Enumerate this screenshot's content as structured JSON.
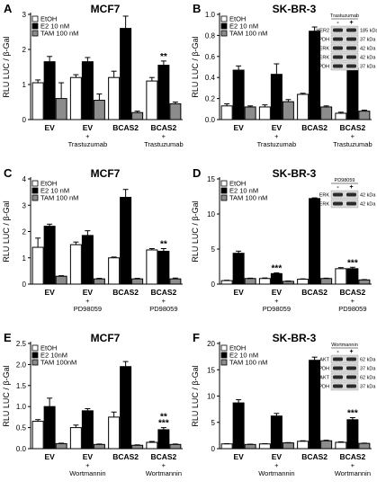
{
  "chart_data": [
    {
      "type": "bar",
      "panel_letter": "A",
      "title": "MCF7",
      "ylabel": "RLU  LUC / β-Gal",
      "ylim": [
        0,
        3
      ],
      "yticks": [
        "0",
        "1",
        "2",
        "3"
      ],
      "categories": [
        [
          "EV"
        ],
        [
          "EV",
          "+",
          "Trastuzumab"
        ],
        [
          "BCAS2"
        ],
        [
          "BCAS2",
          "+",
          "Trastuzumab"
        ]
      ],
      "series": [
        {
          "name": "EtOH",
          "values": [
            1.05,
            1.2,
            1.2,
            1.1
          ],
          "errors": [
            0.08,
            0.08,
            0.18,
            0.1
          ]
        },
        {
          "name": "E2   10 nM",
          "values": [
            1.65,
            1.65,
            2.6,
            1.55
          ],
          "errors": [
            0.15,
            0.12,
            0.35,
            0.12
          ]
        },
        {
          "name": "TAM 100 nM",
          "values": [
            0.6,
            0.55,
            0.2,
            0.45
          ],
          "errors": [
            0.45,
            0.18,
            0.04,
            0.05
          ]
        }
      ],
      "annotations": [
        {
          "category": 3,
          "series": 1,
          "text": "**"
        }
      ]
    },
    {
      "type": "bar",
      "panel_letter": "B",
      "title": "SK-BR-3",
      "ylabel": "RLU  LUC / β-Gal",
      "ylim": [
        0,
        1.0
      ],
      "yticks": [
        "0.0",
        "0.2",
        "0.4",
        "0.6",
        "0.8",
        "1.0"
      ],
      "categories": [
        [
          "EV"
        ],
        [
          "EV",
          "+",
          "Trastuzumab"
        ],
        [
          "BCAS2"
        ],
        [
          "BCAS2",
          "+",
          "Trastuzumab"
        ]
      ],
      "series": [
        {
          "name": "EtOH",
          "values": [
            0.13,
            0.12,
            0.24,
            0.06
          ],
          "errors": [
            0.02,
            0.02,
            0.01,
            0.01
          ]
        },
        {
          "name": "E2   10 nM",
          "values": [
            0.47,
            0.43,
            0.84,
            0.49
          ],
          "errors": [
            0.04,
            0.1,
            0.04,
            0.04
          ]
        },
        {
          "name": "TAM 100 nM",
          "values": [
            0.12,
            0.17,
            0.12,
            0.08
          ],
          "errors": [
            0.01,
            0.02,
            0.01,
            0.01
          ]
        }
      ],
      "annotations": [
        {
          "category": 3,
          "series": 1,
          "text": "***"
        }
      ],
      "blot": {
        "header": "Trastuzumab",
        "lanes": [
          "-",
          "+"
        ],
        "rows": [
          {
            "protein": "HER2",
            "size": "185 kDa"
          },
          {
            "protein": "GAPDH",
            "size": "37 kDa"
          },
          {
            "protein": "ERK",
            "size": "42 kDa"
          },
          {
            "protein": "pERK",
            "size": "42 kDa"
          },
          {
            "protein": "GAPDH",
            "size": "37 kDa"
          }
        ]
      }
    },
    {
      "type": "bar",
      "panel_letter": "C",
      "title": "MCF7",
      "ylabel": "RLU  LUC / β-Gal",
      "ylim": [
        0,
        4
      ],
      "yticks": [
        "0",
        "1",
        "2",
        "3",
        "4"
      ],
      "categories": [
        [
          "EV"
        ],
        [
          "EV",
          "+",
          "PD98059"
        ],
        [
          "BCAS2"
        ],
        [
          "BCAS2",
          "+",
          "PD98059"
        ]
      ],
      "series": [
        {
          "name": "EtOH",
          "values": [
            1.4,
            1.5,
            1.0,
            1.3
          ],
          "errors": [
            0.35,
            0.1,
            0.03,
            0.05
          ]
        },
        {
          "name": "E2   10 nM",
          "values": [
            2.2,
            1.85,
            3.3,
            1.25
          ],
          "errors": [
            0.08,
            0.18,
            0.3,
            0.1
          ]
        },
        {
          "name": "TAM 100 nM",
          "values": [
            0.3,
            0.2,
            0.2,
            0.2
          ],
          "errors": [
            0.02,
            0.02,
            0.02,
            0.03
          ]
        }
      ],
      "annotations": [
        {
          "category": 3,
          "series": 1,
          "text": "**"
        }
      ]
    },
    {
      "type": "bar",
      "panel_letter": "D",
      "title": "SK-BR-3",
      "ylabel": "RLU  LUC / β-Gal",
      "ylim": [
        0,
        15
      ],
      "yticks": [
        "0",
        "5",
        "10",
        "15"
      ],
      "categories": [
        [
          "EV"
        ],
        [
          "EV",
          "+",
          "PD98059"
        ],
        [
          "BCAS2"
        ],
        [
          "BCAS2",
          "+",
          "PD98059"
        ]
      ],
      "series": [
        {
          "name": "EtOH",
          "values": [
            0.5,
            0.8,
            0.7,
            2.2
          ],
          "errors": [
            0.05,
            0.08,
            0.05,
            0.15
          ]
        },
        {
          "name": "E2   10 nM",
          "values": [
            4.4,
            1.5,
            12.2,
            2.2
          ],
          "errors": [
            0.3,
            0.1,
            0.1,
            0.2
          ]
        },
        {
          "name": "TAM 100 nM",
          "values": [
            0.8,
            0.4,
            0.8,
            0.6
          ],
          "errors": [
            0.05,
            0.05,
            0.05,
            0.05
          ]
        }
      ],
      "annotations": [
        {
          "category": 1,
          "series": 1,
          "text": "***"
        },
        {
          "category": 3,
          "series": 1,
          "text": "***"
        }
      ],
      "blot": {
        "header": "PD98059",
        "lanes": [
          "-",
          "+"
        ],
        "rows": [
          {
            "protein": "ERK",
            "size": "42 kDa"
          },
          {
            "protein": "pERK",
            "size": "42 kDa"
          }
        ]
      }
    },
    {
      "type": "bar",
      "panel_letter": "E",
      "title": "MCF7",
      "ylabel": "RLU  LUC / β-Gal",
      "ylim": [
        0,
        2.5
      ],
      "yticks": [
        "0.0",
        "0.5",
        "1.0",
        "1.5",
        "2.0",
        "2.5"
      ],
      "categories": [
        [
          "EV"
        ],
        [
          "EV",
          "+",
          "Wortmannin"
        ],
        [
          "BCAS2"
        ],
        [
          "BCAS2",
          "+",
          "Wortmannin"
        ]
      ],
      "series": [
        {
          "name": "EtOH",
          "values": [
            0.65,
            0.5,
            0.75,
            0.15
          ],
          "errors": [
            0.04,
            0.06,
            0.12,
            0.02
          ]
        },
        {
          "name": "E2 10nM",
          "values": [
            1.0,
            0.9,
            1.95,
            0.45
          ],
          "errors": [
            0.2,
            0.05,
            0.12,
            0.05
          ]
        },
        {
          "name": "TAM 100nM",
          "values": [
            0.12,
            0.1,
            0.08,
            0.1
          ],
          "errors": [
            0.01,
            0.01,
            0.01,
            0.01
          ]
        }
      ],
      "annotations": [
        {
          "category": 3,
          "series": 1,
          "text": "**"
        },
        {
          "category": 3,
          "series": 1,
          "text": "***"
        }
      ]
    },
    {
      "type": "bar",
      "panel_letter": "F",
      "title": "SK-BR-3",
      "ylabel": "RLU  LUC / β-Gal",
      "ylim": [
        0,
        20
      ],
      "yticks": [
        "0",
        "5",
        "10",
        "15",
        "20"
      ],
      "categories": [
        [
          "EV"
        ],
        [
          "EV",
          "+",
          "Wortmannin"
        ],
        [
          "BCAS2"
        ],
        [
          "BCAS2",
          "+",
          "Wortmannin"
        ]
      ],
      "series": [
        {
          "name": "EtOH",
          "values": [
            0.9,
            0.9,
            1.4,
            1.2
          ],
          "errors": [
            0.05,
            0.05,
            0.1,
            0.1
          ]
        },
        {
          "name": "E2   10 nM",
          "values": [
            8.7,
            6.2,
            16.8,
            5.5
          ],
          "errors": [
            0.6,
            0.5,
            0.6,
            0.4
          ]
        },
        {
          "name": "TAM 100 nM",
          "values": [
            0.8,
            1.1,
            1.5,
            1.0
          ],
          "errors": [
            0.05,
            0.05,
            0.1,
            0.05
          ]
        }
      ],
      "annotations": [
        {
          "category": 3,
          "series": 1,
          "text": "***"
        }
      ],
      "blot": {
        "header": "Wortmannin",
        "lanes": [
          "-",
          "+"
        ],
        "rows": [
          {
            "protein": "AKT",
            "size": "62 kDa"
          },
          {
            "protein": "GAPDH",
            "size": "37 kDa"
          },
          {
            "protein": "pAKT",
            "size": "62 kDa"
          },
          {
            "protein": "GAPDH",
            "size": "37 kDa"
          }
        ]
      }
    }
  ],
  "colors": {
    "etoh": "#ffffff",
    "e2": "#000000",
    "tam": "#8c8c8c",
    "axis": "#000000",
    "blot_band": "#2b2b2b"
  }
}
